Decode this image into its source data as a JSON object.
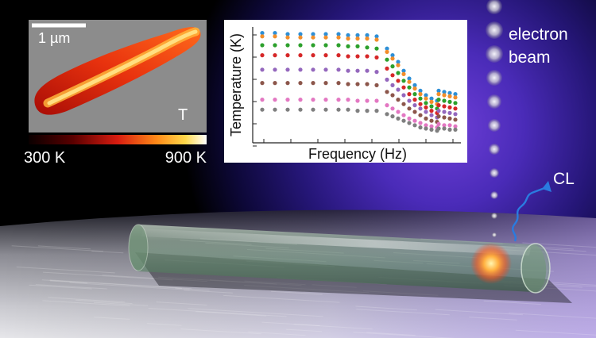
{
  "inset_map": {
    "scalebar_label": "1 µm",
    "panel_label": "T",
    "colorbar_min_label": "300 K",
    "colorbar_max_label": "900 K"
  },
  "beam": {
    "label_line1": "electron",
    "label_line2": "beam"
  },
  "emission": {
    "label": "CL"
  },
  "chart_data": {
    "type": "scatter",
    "title": "",
    "xlabel": "Frequency (Hz)",
    "ylabel": "Temperature (K)",
    "x_scale": "log",
    "x_tick_labels": [],
    "y_tick_labels": [],
    "grid": false,
    "legend": "none",
    "x_index": [
      0,
      1,
      2,
      3,
      4,
      5,
      6,
      7,
      8,
      9,
      10,
      11,
      12,
      13,
      14,
      15,
      16,
      17,
      18,
      19,
      20,
      21,
      22,
      23,
      24
    ],
    "ylim": [
      0,
      1
    ],
    "series": [
      {
        "color": "#2e8fd6",
        "values": [
          0.96,
          0.96,
          0.95,
          0.95,
          0.95,
          0.95,
          0.95,
          0.94,
          0.94,
          0.94,
          0.93,
          0.82,
          0.76,
          0.7,
          0.62,
          0.55,
          0.49,
          0.44,
          0.4,
          0.37,
          0.35,
          0.44,
          0.43,
          0.42,
          0.41
        ]
      },
      {
        "color": "#f28e2b",
        "values": [
          0.93,
          0.93,
          0.92,
          0.92,
          0.92,
          0.92,
          0.92,
          0.91,
          0.91,
          0.91,
          0.9,
          0.79,
          0.73,
          0.67,
          0.59,
          0.52,
          0.46,
          0.41,
          0.37,
          0.34,
          0.32,
          0.41,
          0.4,
          0.39,
          0.38
        ]
      },
      {
        "color": "#2ca02c",
        "values": [
          0.85,
          0.85,
          0.85,
          0.85,
          0.85,
          0.85,
          0.85,
          0.84,
          0.84,
          0.83,
          0.82,
          0.72,
          0.66,
          0.6,
          0.53,
          0.47,
          0.41,
          0.37,
          0.33,
          0.3,
          0.28,
          0.36,
          0.35,
          0.34,
          0.33
        ]
      },
      {
        "color": "#d62728",
        "values": [
          0.76,
          0.76,
          0.76,
          0.76,
          0.76,
          0.76,
          0.76,
          0.75,
          0.75,
          0.75,
          0.74,
          0.64,
          0.58,
          0.53,
          0.47,
          0.41,
          0.36,
          0.32,
          0.29,
          0.26,
          0.24,
          0.31,
          0.3,
          0.29,
          0.28
        ]
      },
      {
        "color": "#9467bd",
        "values": [
          0.63,
          0.63,
          0.63,
          0.63,
          0.63,
          0.63,
          0.63,
          0.62,
          0.62,
          0.62,
          0.61,
          0.54,
          0.49,
          0.45,
          0.4,
          0.35,
          0.31,
          0.28,
          0.25,
          0.22,
          0.2,
          0.26,
          0.25,
          0.24,
          0.23
        ]
      },
      {
        "color": "#8c564b",
        "values": [
          0.51,
          0.51,
          0.51,
          0.51,
          0.51,
          0.51,
          0.51,
          0.5,
          0.5,
          0.5,
          0.49,
          0.43,
          0.4,
          0.36,
          0.32,
          0.28,
          0.25,
          0.22,
          0.19,
          0.17,
          0.16,
          0.21,
          0.2,
          0.19,
          0.18
        ]
      },
      {
        "color": "#e377c2",
        "values": [
          0.36,
          0.36,
          0.36,
          0.36,
          0.36,
          0.36,
          0.36,
          0.36,
          0.35,
          0.35,
          0.35,
          0.31,
          0.28,
          0.25,
          0.22,
          0.19,
          0.17,
          0.15,
          0.13,
          0.12,
          0.11,
          0.14,
          0.13,
          0.13,
          0.12
        ]
      },
      {
        "color": "#7f7f7f",
        "values": [
          0.27,
          0.27,
          0.27,
          0.27,
          0.27,
          0.27,
          0.27,
          0.27,
          0.26,
          0.26,
          0.26,
          0.23,
          0.21,
          0.19,
          0.17,
          0.15,
          0.13,
          0.11,
          0.1,
          0.09,
          0.08,
          0.1,
          0.1,
          0.09,
          0.09
        ]
      }
    ]
  }
}
